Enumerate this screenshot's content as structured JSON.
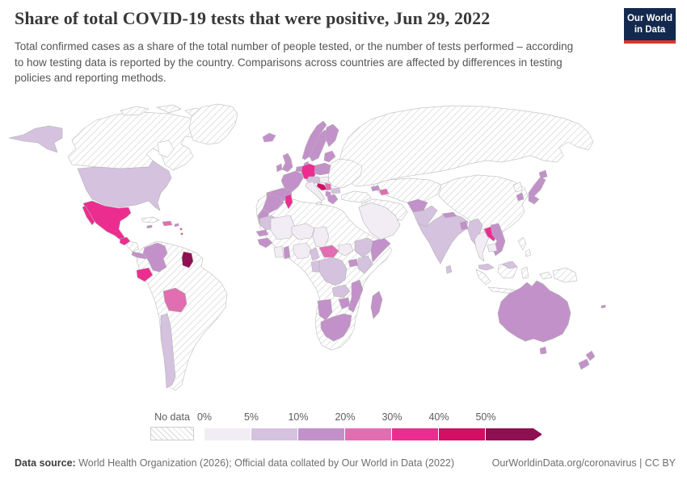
{
  "header": {
    "title": "Share of total COVID-19 tests that were positive, Jun 29, 2022",
    "subtitle": "Total confirmed cases as a share of the total number of people tested, or the number of tests performed – according to how testing data is reported by the country. Comparisons across countries are affected by differences in testing policies and reporting methods.",
    "logo": {
      "line1": "Our World",
      "line2": "in Data",
      "bg_color": "#13294e",
      "stripe_color": "#d7382e"
    }
  },
  "legend": {
    "no_data_label": "No data",
    "tick_labels": [
      "0%",
      "5%",
      "10%",
      "20%",
      "30%",
      "40%",
      "50%"
    ],
    "bins": [
      {
        "range": "0-5%",
        "color": "#f2edf4"
      },
      {
        "range": "5-10%",
        "color": "#d5c2df"
      },
      {
        "range": "10-20%",
        "color": "#c391c9"
      },
      {
        "range": "20-30%",
        "color": "#e06eb1"
      },
      {
        "range": "30-40%",
        "color": "#ec2d90"
      },
      {
        "range": "40-50%",
        "color": "#d10f63"
      },
      {
        "range": ">50%",
        "color": "#8e0f52"
      }
    ],
    "map_border_color": "#c6c6c6",
    "hatch_line_color": "#d4d4d4"
  },
  "footer": {
    "source_label": "Data source:",
    "source_text": " World Health Organization (2026); Official data collated by Our World in Data (2022)",
    "link_text": "OurWorldinData.org/coronavirus | CC BY"
  },
  "chart_data": {
    "type": "choropleth_map",
    "title": "Share of total COVID-19 tests that were positive",
    "date": "Jun 29, 2022",
    "unit": "share of tests positive (%)",
    "legend_thresholds_percent": [
      0,
      5,
      10,
      20,
      30,
      40,
      50
    ],
    "top_bin_open_ended": true,
    "no_data_style": "diagonal hatching",
    "countries": {
      "united-states": 1,
      "mexico": 4,
      "guatemala": 4,
      "costa-rica-panama": 2,
      "hispaniola": 3,
      "jamaica": 2,
      "puerto-rico": 2,
      "lesser-antilles": 4,
      "colombia": 2,
      "ecuador": 4,
      "guyana": 6,
      "bolivia": 3,
      "chile": 1,
      "iceland": 2,
      "united-kingdom": 2,
      "ireland": 2,
      "norway": 2,
      "sweden": 2,
      "finland": 2,
      "denmark": 2,
      "germany": 4,
      "france": 2,
      "spain": 2,
      "portugal": 2,
      "benelux": 2,
      "poland": 2,
      "baltic-states": 2,
      "czechia-austria": 1,
      "hungary-slovakia": 0,
      "italy": 0,
      "sicily": 0,
      "croatia": 5,
      "serbia": 3,
      "albania-north-macedonia": 2,
      "greece": 2,
      "bulgaria": 1,
      "morocco": 2,
      "western-sahara": 2,
      "tunisia": 4,
      "mauritania": 1,
      "mali-burkina": 0,
      "senegal": 2,
      "guinea": 2,
      "cote-divoire": 0,
      "ghana": 2,
      "niger": 0,
      "chad": 0,
      "nigeria": 0,
      "cameroon": 1,
      "central-african-republic": 3,
      "south-sudan": 0,
      "ethiopia": 1,
      "somalia": 2,
      "uganda": 2,
      "kenya": 1,
      "dr-congo": 1,
      "gabon-congo": 1,
      "zambia": 1,
      "zimbabwe": 2,
      "mozambique": 2,
      "namibia": 2,
      "south-africa": 2,
      "madagascar": 2,
      "arabian-peninsula": 0,
      "azerbaijan": 3,
      "georgia": 2,
      "afghanistan": 2,
      "pakistan": 1,
      "india": 1,
      "nepal": 2,
      "bangladesh": 2,
      "sri-lanka": 1,
      "myanmar": 1,
      "thailand": 0,
      "laos": 4,
      "vietnam": 2,
      "cambodia": 0,
      "malaysia": 1,
      "japan": 2,
      "south-korea": 2,
      "australia": 2,
      "tasmania": 2,
      "new-zealand": 2,
      "fiji": 2
    }
  }
}
